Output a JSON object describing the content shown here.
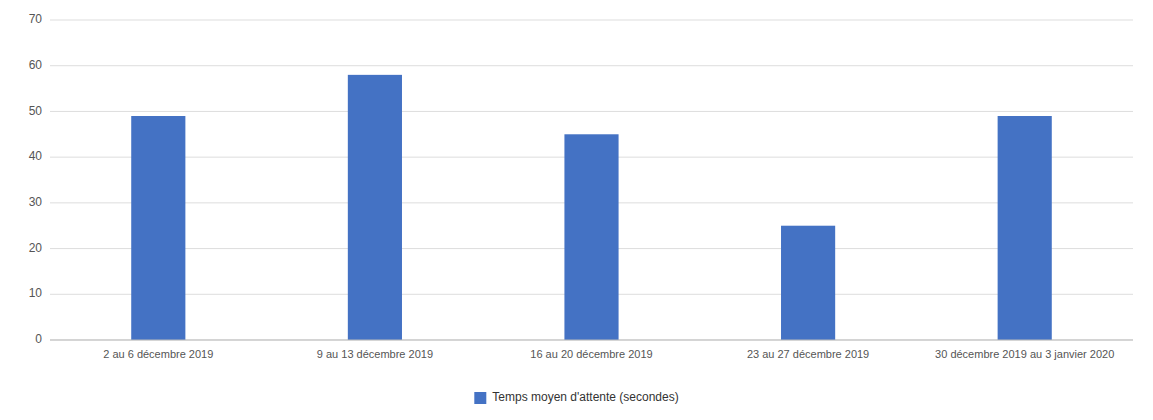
{
  "chart_data": {
    "type": "bar",
    "categories": [
      "2 au 6 décembre 2019",
      "9 au 13 décembre 2019",
      "16 au 20 décembre 2019",
      "23 au 27 décembre 2019",
      "30 décembre 2019 au 3 janvier 2020"
    ],
    "series": [
      {
        "name": "Temps moyen d'attente (secondes)",
        "color": "#4472C4",
        "values": [
          49,
          58,
          45,
          25,
          49
        ]
      }
    ],
    "ylim": [
      0,
      70
    ],
    "yticks": [
      0,
      10,
      20,
      30,
      40,
      50,
      60,
      70
    ],
    "grid": true,
    "legend": "bottom"
  }
}
